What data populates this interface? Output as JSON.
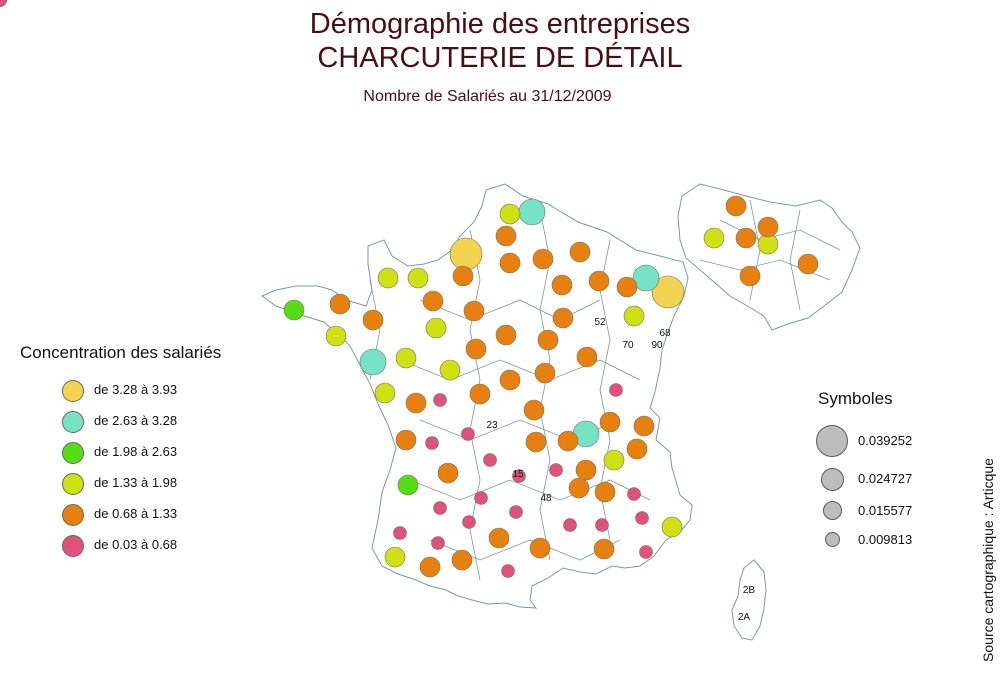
{
  "header": {
    "title_line1": "Démographie des entreprises",
    "title_line2": "CHARCUTERIE DE DÉTAIL",
    "subtitle": "Nombre de Salariés au 31/12/2009"
  },
  "colors": {
    "class1": "#f2d34f",
    "class2": "#77e2c4",
    "class3": "#55dd12",
    "class4": "#cfe013",
    "class5": "#e8800f",
    "class6": "#e0527a",
    "border": "#7a9aa5"
  },
  "legend": {
    "title": "Concentration des salariés",
    "items": [
      {
        "label": "de 3.28 à 3.93",
        "cls": "class1"
      },
      {
        "label": "de 2.63 à 3.28",
        "cls": "class2"
      },
      {
        "label": "de 1.98 à 2.63",
        "cls": "class3"
      },
      {
        "label": "de 1.33 à 1.98",
        "cls": "class4"
      },
      {
        "label": "de 0.68 à 1.33",
        "cls": "class5"
      },
      {
        "label": "de 0.03 à 0.68",
        "cls": "class6"
      }
    ]
  },
  "symbols": {
    "title": "Symboles",
    "items": [
      {
        "label": "0.039252"
      },
      {
        "label": "0.024727"
      },
      {
        "label": "0.015577"
      },
      {
        "label": "0.009813"
      }
    ]
  },
  "source": "Source cartographique : Articque",
  "department_labels": [
    "52",
    "70",
    "90",
    "68",
    "23",
    "15",
    "48",
    "2B",
    "2A"
  ],
  "markers": [
    {
      "cls": "class1",
      "size": 4
    },
    {
      "cls": "class1",
      "size": 4
    },
    {
      "cls": "class2",
      "size": 3
    },
    {
      "cls": "class2",
      "size": 3
    },
    {
      "cls": "class2",
      "size": 3
    },
    {
      "cls": "class2",
      "size": 3
    },
    {
      "cls": "class3",
      "size": 2
    },
    {
      "cls": "class3",
      "size": 2
    },
    {
      "cls": "class4",
      "size": 2
    },
    {
      "cls": "class4",
      "size": 2
    },
    {
      "cls": "class4",
      "size": 2
    },
    {
      "cls": "class4",
      "size": 2
    },
    {
      "cls": "class4",
      "size": 2
    },
    {
      "cls": "class4",
      "size": 2
    },
    {
      "cls": "class4",
      "size": 2
    },
    {
      "cls": "class4",
      "size": 2
    },
    {
      "cls": "class4",
      "size": 2
    },
    {
      "cls": "class4",
      "size": 2
    },
    {
      "cls": "class4",
      "size": 2
    },
    {
      "cls": "class4",
      "size": 2
    },
    {
      "cls": "class4",
      "size": 2
    },
    {
      "cls": "class4",
      "size": 2
    },
    {
      "cls": "class5",
      "size": 2
    },
    {
      "cls": "class5",
      "size": 2
    },
    {
      "cls": "class5",
      "size": 2
    },
    {
      "cls": "class5",
      "size": 2
    },
    {
      "cls": "class5",
      "size": 2
    },
    {
      "cls": "class5",
      "size": 2
    },
    {
      "cls": "class5",
      "size": 2
    },
    {
      "cls": "class5",
      "size": 2
    },
    {
      "cls": "class5",
      "size": 2
    },
    {
      "cls": "class5",
      "size": 2
    },
    {
      "cls": "class5",
      "size": 2
    },
    {
      "cls": "class5",
      "size": 2
    },
    {
      "cls": "class5",
      "size": 2
    },
    {
      "cls": "class5",
      "size": 2
    },
    {
      "cls": "class5",
      "size": 2
    },
    {
      "cls": "class5",
      "size": 2
    },
    {
      "cls": "class5",
      "size": 2
    },
    {
      "cls": "class5",
      "size": 2
    },
    {
      "cls": "class5",
      "size": 2
    },
    {
      "cls": "class5",
      "size": 2
    },
    {
      "cls": "class5",
      "size": 2
    },
    {
      "cls": "class5",
      "size": 2
    },
    {
      "cls": "class5",
      "size": 2
    },
    {
      "cls": "class5",
      "size": 2
    },
    {
      "cls": "class5",
      "size": 2
    },
    {
      "cls": "class5",
      "size": 2
    },
    {
      "cls": "class5",
      "size": 2
    },
    {
      "cls": "class5",
      "size": 2
    },
    {
      "cls": "class5",
      "size": 2
    },
    {
      "cls": "class5",
      "size": 2
    },
    {
      "cls": "class5",
      "size": 2
    },
    {
      "cls": "class5",
      "size": 2
    },
    {
      "cls": "class5",
      "size": 2
    },
    {
      "cls": "class5",
      "size": 2
    },
    {
      "cls": "class5",
      "size": 2
    },
    {
      "cls": "class5",
      "size": 2
    },
    {
      "cls": "class5",
      "size": 2
    },
    {
      "cls": "class5",
      "size": 2
    },
    {
      "cls": "class5",
      "size": 2
    },
    {
      "cls": "class5",
      "size": 2
    },
    {
      "cls": "class5",
      "size": 2
    },
    {
      "cls": "class5",
      "size": 2
    },
    {
      "cls": "class6",
      "size": 1
    },
    {
      "cls": "class6",
      "size": 1
    },
    {
      "cls": "class6",
      "size": 1
    },
    {
      "cls": "class6",
      "size": 1
    },
    {
      "cls": "class6",
      "size": 1
    },
    {
      "cls": "class6",
      "size": 1
    },
    {
      "cls": "class6",
      "size": 1
    },
    {
      "cls": "class6",
      "size": 1
    },
    {
      "cls": "class6",
      "size": 1
    },
    {
      "cls": "class6",
      "size": 1
    },
    {
      "cls": "class6",
      "size": 1
    },
    {
      "cls": "class6",
      "size": 1
    },
    {
      "cls": "class6",
      "size": 1
    },
    {
      "cls": "class6",
      "size": 1
    },
    {
      "cls": "class6",
      "size": 1
    },
    {
      "cls": "class6",
      "size": 1
    },
    {
      "cls": "class6",
      "size": 1
    },
    {
      "cls": "class6",
      "size": 1
    },
    {
      "cls": "class6",
      "size": 1
    },
    {
      "cls": "class6",
      "size": 1
    },
    {
      "cls": "class6",
      "size": 1
    },
    {
      "cls": "class6",
      "size": 1
    },
    {
      "cls": "class6",
      "size": 1
    }
  ]
}
